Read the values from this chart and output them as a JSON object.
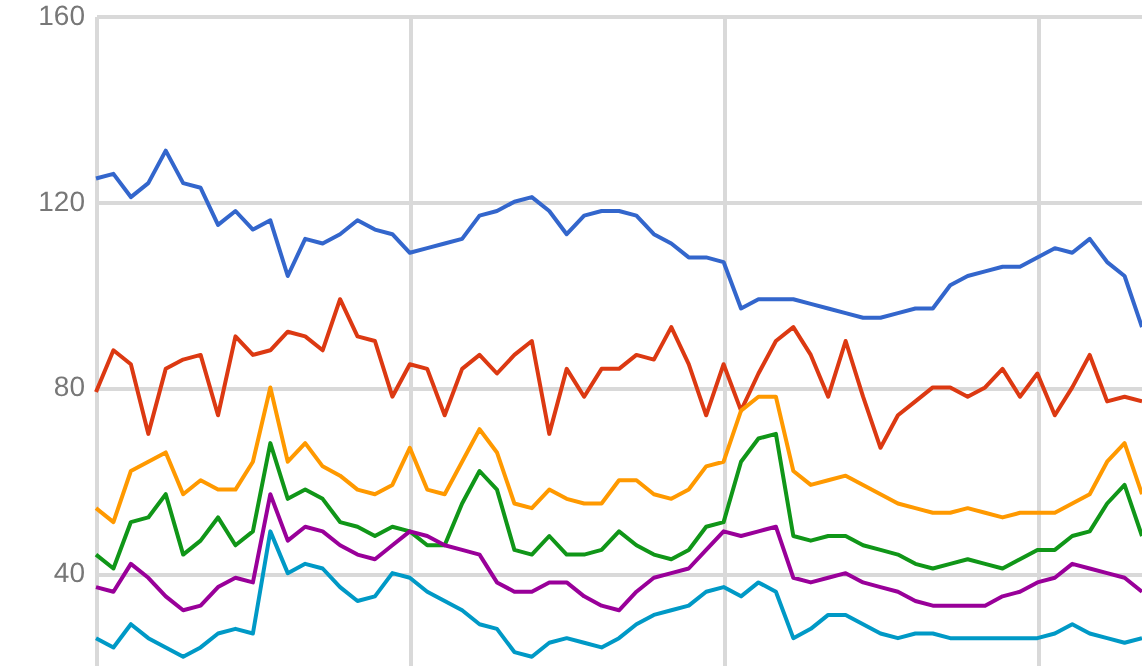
{
  "chart_data": {
    "type": "line",
    "categories": [
      null,
      null,
      null,
      null,
      null,
      null,
      null,
      null,
      null,
      null,
      null,
      null,
      null,
      null,
      null,
      null,
      null,
      null,
      null,
      null,
      null,
      null,
      null,
      null,
      null,
      null,
      null,
      null,
      null,
      null,
      null,
      null,
      null,
      null,
      null,
      null,
      null,
      null,
      null,
      null,
      null,
      null,
      null,
      null,
      null,
      null,
      null,
      null,
      null,
      null,
      null,
      null,
      null,
      null,
      null,
      null,
      null,
      null,
      null,
      null,
      null
    ],
    "ylim": [
      20,
      160
    ],
    "yticks": [
      40,
      80,
      120,
      160
    ],
    "grid": true,
    "tick_labels": "y",
    "series": [
      {
        "color": "#3366cc",
        "values": [
          125,
          126,
          121,
          124,
          131,
          124,
          123,
          115,
          118,
          114,
          116,
          104,
          112,
          111,
          113,
          116,
          114,
          113,
          109,
          110,
          111,
          112,
          117,
          118,
          120,
          121,
          118,
          113,
          117,
          118,
          118,
          117,
          113,
          111,
          108,
          108,
          107,
          97,
          99,
          99,
          99,
          98,
          97,
          96,
          95,
          95,
          96,
          97,
          97,
          102,
          104,
          105,
          106,
          106,
          108,
          110,
          109,
          112,
          107,
          104,
          93
        ]
      },
      {
        "color": "#dc3912",
        "values": [
          79,
          88,
          85,
          70,
          84,
          86,
          87,
          74,
          91,
          87,
          88,
          92,
          91,
          88,
          99,
          91,
          90,
          78,
          85,
          84,
          74,
          84,
          87,
          83,
          87,
          90,
          70,
          84,
          78,
          84,
          84,
          87,
          86,
          93,
          85,
          74,
          85,
          75,
          83,
          90,
          93,
          87,
          78,
          90,
          78,
          67,
          74,
          77,
          80,
          80,
          78,
          80,
          84,
          78,
          83,
          74,
          80,
          87,
          77,
          78,
          77
        ]
      },
      {
        "color": "#ff9900",
        "values": [
          54,
          51,
          62,
          64,
          66,
          57,
          60,
          58,
          58,
          64,
          80,
          64,
          68,
          63,
          61,
          58,
          57,
          59,
          67,
          58,
          57,
          64,
          71,
          66,
          55,
          54,
          58,
          56,
          55,
          55,
          60,
          60,
          57,
          56,
          58,
          63,
          64,
          75,
          78,
          78,
          62,
          59,
          60,
          61,
          59,
          57,
          55,
          54,
          53,
          53,
          54,
          53,
          52,
          53,
          53,
          53,
          55,
          57,
          64,
          68,
          57
        ]
      },
      {
        "color": "#109618",
        "values": [
          44,
          41,
          51,
          52,
          57,
          44,
          47,
          52,
          46,
          49,
          68,
          56,
          58,
          56,
          51,
          50,
          48,
          50,
          49,
          46,
          46,
          55,
          62,
          58,
          45,
          44,
          48,
          44,
          44,
          45,
          49,
          46,
          44,
          43,
          45,
          50,
          51,
          64,
          69,
          70,
          48,
          47,
          48,
          48,
          46,
          45,
          44,
          42,
          41,
          42,
          43,
          42,
          41,
          43,
          45,
          45,
          48,
          49,
          55,
          59,
          48
        ]
      },
      {
        "color": "#990099",
        "values": [
          37,
          36,
          42,
          39,
          35,
          32,
          33,
          37,
          39,
          38,
          57,
          47,
          50,
          49,
          46,
          44,
          43,
          46,
          49,
          48,
          46,
          45,
          44,
          38,
          36,
          36,
          38,
          38,
          35,
          33,
          32,
          36,
          39,
          40,
          41,
          45,
          49,
          48,
          49,
          50,
          39,
          38,
          39,
          40,
          38,
          37,
          36,
          34,
          33,
          33,
          33,
          33,
          35,
          36,
          38,
          39,
          42,
          41,
          40,
          39,
          36
        ]
      },
      {
        "color": "#0099c6",
        "values": [
          26,
          24,
          29,
          26,
          24,
          22,
          24,
          27,
          28,
          27,
          49,
          40,
          42,
          41,
          37,
          34,
          35,
          40,
          39,
          36,
          34,
          32,
          29,
          28,
          23,
          22,
          25,
          26,
          25,
          24,
          26,
          29,
          31,
          32,
          33,
          36,
          37,
          35,
          38,
          36,
          26,
          28,
          31,
          31,
          29,
          27,
          26,
          27,
          27,
          26,
          26,
          26,
          26,
          26,
          26,
          27,
          29,
          27,
          26,
          25,
          26
        ]
      }
    ]
  }
}
